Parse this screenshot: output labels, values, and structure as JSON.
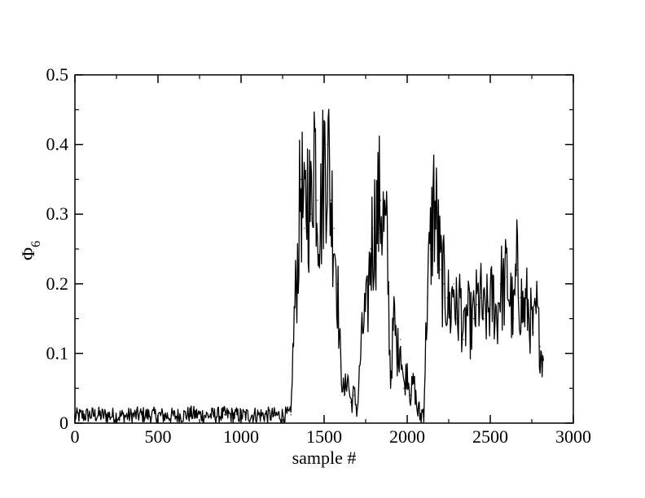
{
  "chart_data": {
    "type": "line",
    "title": "",
    "xlabel": "sample #",
    "ylabel": {
      "symbol": "Φ",
      "subscript": "6"
    },
    "xlim": [
      0,
      3000
    ],
    "ylim": [
      0,
      0.5
    ],
    "x_ticks": [
      0,
      500,
      1000,
      1500,
      2000,
      2500,
      3000
    ],
    "x_tick_labels": [
      "0",
      "500",
      "1000",
      "1500",
      "2000",
      "2500",
      "3000"
    ],
    "y_ticks": [
      0,
      0.1,
      0.2,
      0.3,
      0.4,
      0.5
    ],
    "y_tick_labels": [
      "0",
      "0.1",
      "0.2",
      "0.3",
      "0.4",
      "0.5"
    ],
    "grid": false,
    "legend": "none",
    "line_color": "#000000",
    "series": [
      {
        "x": [
          0,
          100,
          200,
          300,
          400,
          500,
          600,
          700,
          800,
          900,
          1000,
          1100,
          1200,
          1300,
          1320,
          1340,
          1360,
          1380,
          1400,
          1420,
          1440,
          1460,
          1480,
          1500,
          1520,
          1540,
          1560,
          1580,
          1600,
          1620,
          1640,
          1660,
          1680,
          1700,
          1720,
          1740,
          1760,
          1780,
          1800,
          1820,
          1840,
          1860,
          1880,
          1900,
          1920,
          1940,
          1960,
          1980,
          2000,
          2020,
          2040,
          2060,
          2080,
          2100,
          2120,
          2140,
          2160,
          2180,
          2200,
          2220,
          2240,
          2260,
          2280,
          2300,
          2320,
          2340,
          2360,
          2380,
          2400,
          2420,
          2440,
          2460,
          2480,
          2500,
          2520,
          2540,
          2560,
          2580,
          2600,
          2620,
          2640,
          2660,
          2680,
          2700,
          2720,
          2740,
          2760,
          2780,
          2800,
          2820
        ],
        "values": [
          0.01,
          0.012,
          0.011,
          0.01,
          0.012,
          0.011,
          0.01,
          0.013,
          0.011,
          0.012,
          0.011,
          0.012,
          0.011,
          0.012,
          0.15,
          0.23,
          0.35,
          0.28,
          0.34,
          0.3,
          0.42,
          0.32,
          0.3,
          0.38,
          0.4,
          0.32,
          0.28,
          0.2,
          0.08,
          0.04,
          0.07,
          0.03,
          0.04,
          0.02,
          0.1,
          0.15,
          0.16,
          0.25,
          0.28,
          0.3,
          0.32,
          0.28,
          0.25,
          0.06,
          0.15,
          0.1,
          0.12,
          0.05,
          0.08,
          0.04,
          0.06,
          0.02,
          0.01,
          0.02,
          0.18,
          0.25,
          0.32,
          0.28,
          0.22,
          0.2,
          0.18,
          0.16,
          0.2,
          0.15,
          0.18,
          0.12,
          0.16,
          0.14,
          0.15,
          0.17,
          0.18,
          0.15,
          0.16,
          0.17,
          0.18,
          0.15,
          0.2,
          0.19,
          0.21,
          0.18,
          0.15,
          0.22,
          0.18,
          0.16,
          0.17,
          0.15,
          0.13,
          0.16,
          0.11,
          0.09
        ]
      }
    ]
  }
}
